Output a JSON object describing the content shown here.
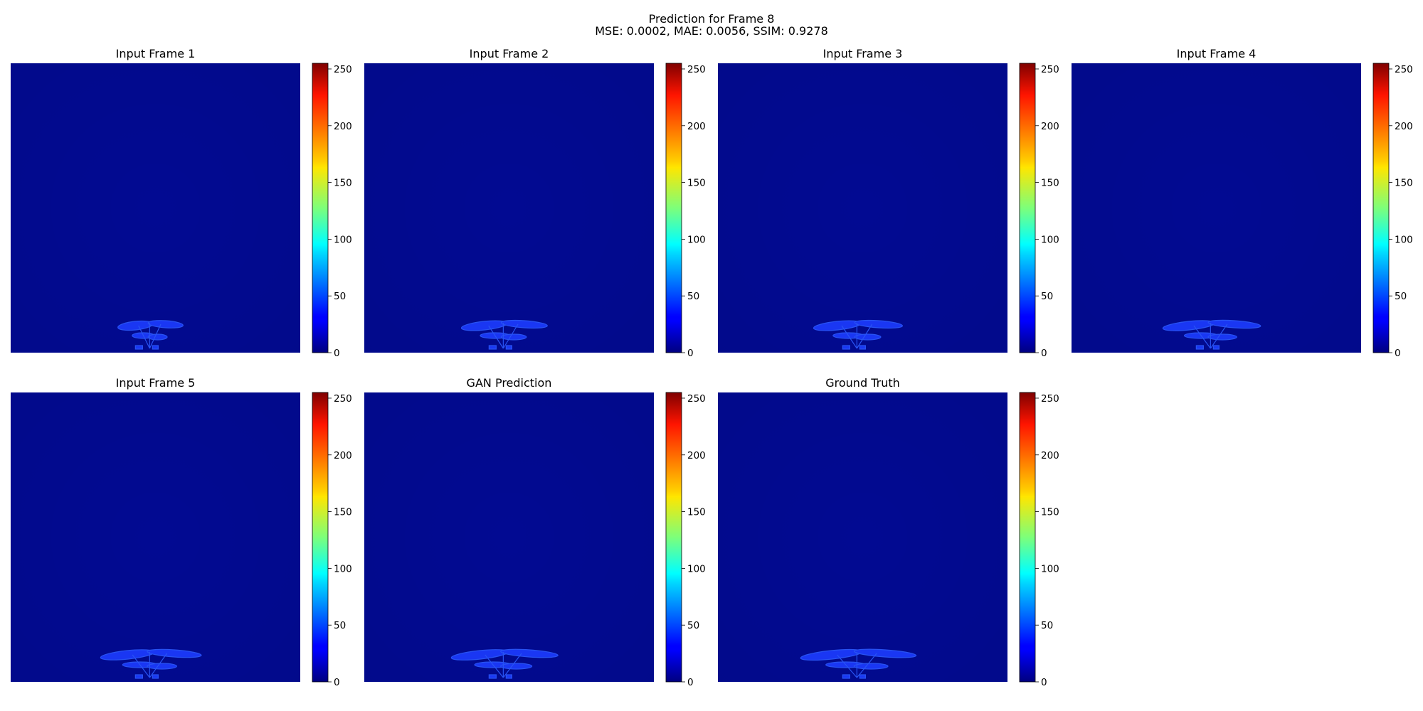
{
  "figure": {
    "title": "Prediction for Frame 8",
    "metrics": "MSE: 0.0002, MAE: 0.0056, SSIM: 0.9278"
  },
  "colorbar": {
    "colormap": "jet",
    "range": [
      0,
      255
    ],
    "ticks": [
      0,
      50,
      100,
      150,
      200,
      250
    ]
  },
  "colors": {
    "background_field": "#020a92",
    "plant_field": "#1d3cff",
    "plant_highlight": "#2d5cff"
  },
  "chart_data": {
    "type": "heatmap",
    "panels": [
      {
        "title": "Input Frame 1",
        "plant_spread": 0.22,
        "plant_intensity": 60
      },
      {
        "title": "Input Frame 2",
        "plant_spread": 0.29,
        "plant_intensity": 62
      },
      {
        "title": "Input Frame 3",
        "plant_spread": 0.3,
        "plant_intensity": 62
      },
      {
        "title": "Input Frame 4",
        "plant_spread": 0.33,
        "plant_intensity": 63
      },
      {
        "title": "Input Frame 5",
        "plant_spread": 0.34,
        "plant_intensity": 64
      },
      {
        "title": "GAN Prediction",
        "plant_spread": 0.36,
        "plant_intensity": 60
      },
      {
        "title": "Ground Truth",
        "plant_spread": 0.39,
        "plant_intensity": 66
      }
    ]
  }
}
